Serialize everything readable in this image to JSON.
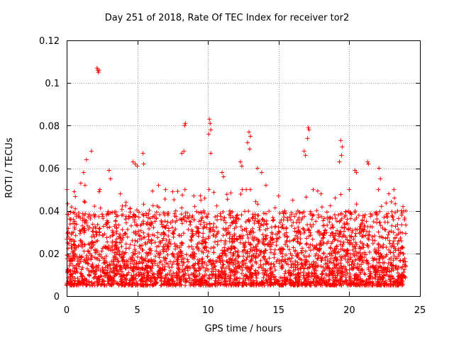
{
  "chart_data": {
    "type": "scatter",
    "title": "Day 251 of 2018, Rate Of TEC Index for receiver tor2",
    "xlabel": "GPS time / hours",
    "ylabel": "ROTI / TECUs",
    "xlim": [
      0,
      25
    ],
    "ylim": [
      0,
      0.12
    ],
    "xticks": [
      0,
      5,
      10,
      15,
      20,
      25
    ],
    "yticks": [
      0,
      0.02,
      0.04,
      0.06,
      0.08,
      0.1,
      0.12
    ],
    "xtick_labels": [
      "0",
      "5",
      "10",
      "15",
      "20",
      "25"
    ],
    "ytick_labels": [
      "0",
      "0.02",
      "0.04",
      "0.06",
      "0.08",
      "0.1",
      "0.12"
    ],
    "grid": true,
    "marker": "plus",
    "color": "#ff0000",
    "x_range_hours": [
      0,
      24
    ],
    "typical_band": [
      0.005,
      0.03
    ],
    "series": [
      {
        "name": "ROTI",
        "points": [
          [
            2.2,
            0.106
          ],
          [
            2.25,
            0.105
          ],
          [
            2.15,
            0.107
          ],
          [
            2.3,
            0.106
          ],
          [
            10.1,
            0.083
          ],
          [
            10.15,
            0.081
          ],
          [
            10.2,
            0.078
          ],
          [
            10.05,
            0.076
          ],
          [
            10.2,
            0.067
          ],
          [
            8.4,
            0.081
          ],
          [
            8.35,
            0.08
          ],
          [
            8.3,
            0.068
          ],
          [
            8.15,
            0.067
          ],
          [
            17.1,
            0.079
          ],
          [
            17.15,
            0.078
          ],
          [
            17.05,
            0.074
          ],
          [
            16.8,
            0.068
          ],
          [
            16.9,
            0.066
          ],
          [
            12.9,
            0.077
          ],
          [
            13.0,
            0.075
          ],
          [
            12.8,
            0.072
          ],
          [
            12.95,
            0.069
          ],
          [
            19.4,
            0.073
          ],
          [
            19.5,
            0.07
          ],
          [
            19.45,
            0.066
          ],
          [
            19.3,
            0.063
          ],
          [
            1.75,
            0.068
          ],
          [
            1.4,
            0.064
          ],
          [
            1.2,
            0.058
          ],
          [
            1.0,
            0.053
          ],
          [
            1.3,
            0.052
          ],
          [
            4.7,
            0.063
          ],
          [
            4.85,
            0.062
          ],
          [
            5.0,
            0.061
          ],
          [
            5.4,
            0.067
          ],
          [
            5.45,
            0.062
          ],
          [
            3.0,
            0.059
          ],
          [
            3.1,
            0.055
          ],
          [
            2.35,
            0.05
          ],
          [
            2.3,
            0.049
          ],
          [
            21.3,
            0.063
          ],
          [
            21.35,
            0.062
          ],
          [
            20.4,
            0.059
          ],
          [
            20.5,
            0.058
          ],
          [
            22.1,
            0.06
          ],
          [
            22.2,
            0.055
          ],
          [
            12.3,
            0.063
          ],
          [
            12.4,
            0.061
          ],
          [
            11.0,
            0.058
          ],
          [
            11.1,
            0.056
          ],
          [
            13.5,
            0.06
          ],
          [
            13.8,
            0.058
          ],
          [
            14.1,
            0.052
          ],
          [
            15.0,
            0.047
          ],
          [
            16.0,
            0.045
          ],
          [
            18.0,
            0.048
          ],
          [
            19.0,
            0.046
          ],
          [
            20.0,
            0.05
          ],
          [
            22.8,
            0.048
          ],
          [
            23.2,
            0.046
          ],
          [
            23.8,
            0.042
          ],
          [
            6.5,
            0.052
          ],
          [
            7.0,
            0.05
          ],
          [
            7.5,
            0.049
          ],
          [
            9.0,
            0.047
          ],
          [
            9.5,
            0.045
          ],
          [
            3.8,
            0.048
          ],
          [
            4.2,
            0.044
          ],
          [
            0.3,
            0.036
          ],
          [
            0.6,
            0.041
          ],
          [
            0.1,
            0.03
          ],
          [
            24.0,
            0.04
          ]
        ]
      }
    ]
  }
}
